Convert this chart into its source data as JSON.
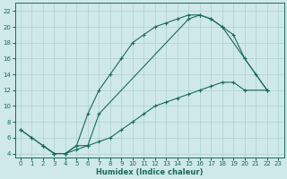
{
  "xlabel": "Humidex (Indice chaleur)",
  "bg_color": "#cfe8e8",
  "grid_color": "#afd0d0",
  "line_color": "#1a6b5a",
  "xlim": [
    -0.5,
    23.5
  ],
  "ylim": [
    3.5,
    23
  ],
  "xticks": [
    0,
    1,
    2,
    3,
    4,
    5,
    6,
    7,
    8,
    9,
    10,
    11,
    12,
    13,
    14,
    15,
    16,
    17,
    18,
    19,
    20,
    21,
    22,
    23
  ],
  "yticks": [
    4,
    6,
    8,
    10,
    12,
    14,
    16,
    18,
    20,
    22
  ],
  "line1_x": [
    0,
    1,
    2,
    3,
    4,
    5,
    6,
    7,
    8,
    9,
    10,
    11,
    12,
    13,
    14,
    15,
    16,
    17,
    18,
    22
  ],
  "line1_y": [
    7,
    6,
    5,
    4,
    4,
    5,
    9,
    12,
    14,
    16,
    18,
    19,
    20,
    20.5,
    21,
    21.5,
    21.5,
    21,
    20,
    12
  ],
  "line2_x": [
    0,
    1,
    2,
    3,
    4,
    5,
    6,
    7,
    15,
    16,
    17,
    18,
    19,
    20,
    21,
    22
  ],
  "line2_y": [
    7,
    6,
    5,
    4,
    4,
    5,
    5,
    9,
    21,
    21.5,
    21,
    20,
    19,
    16,
    14,
    12
  ],
  "line3_x": [
    2,
    3,
    4,
    5,
    6,
    7,
    8,
    9,
    10,
    11,
    12,
    13,
    14,
    15,
    16,
    17,
    18,
    19,
    20,
    22
  ],
  "line3_y": [
    5,
    4,
    4,
    4.5,
    5,
    5.5,
    6,
    7,
    8,
    9,
    10,
    10.5,
    11,
    11.5,
    12,
    12.5,
    13,
    13,
    12,
    12
  ]
}
